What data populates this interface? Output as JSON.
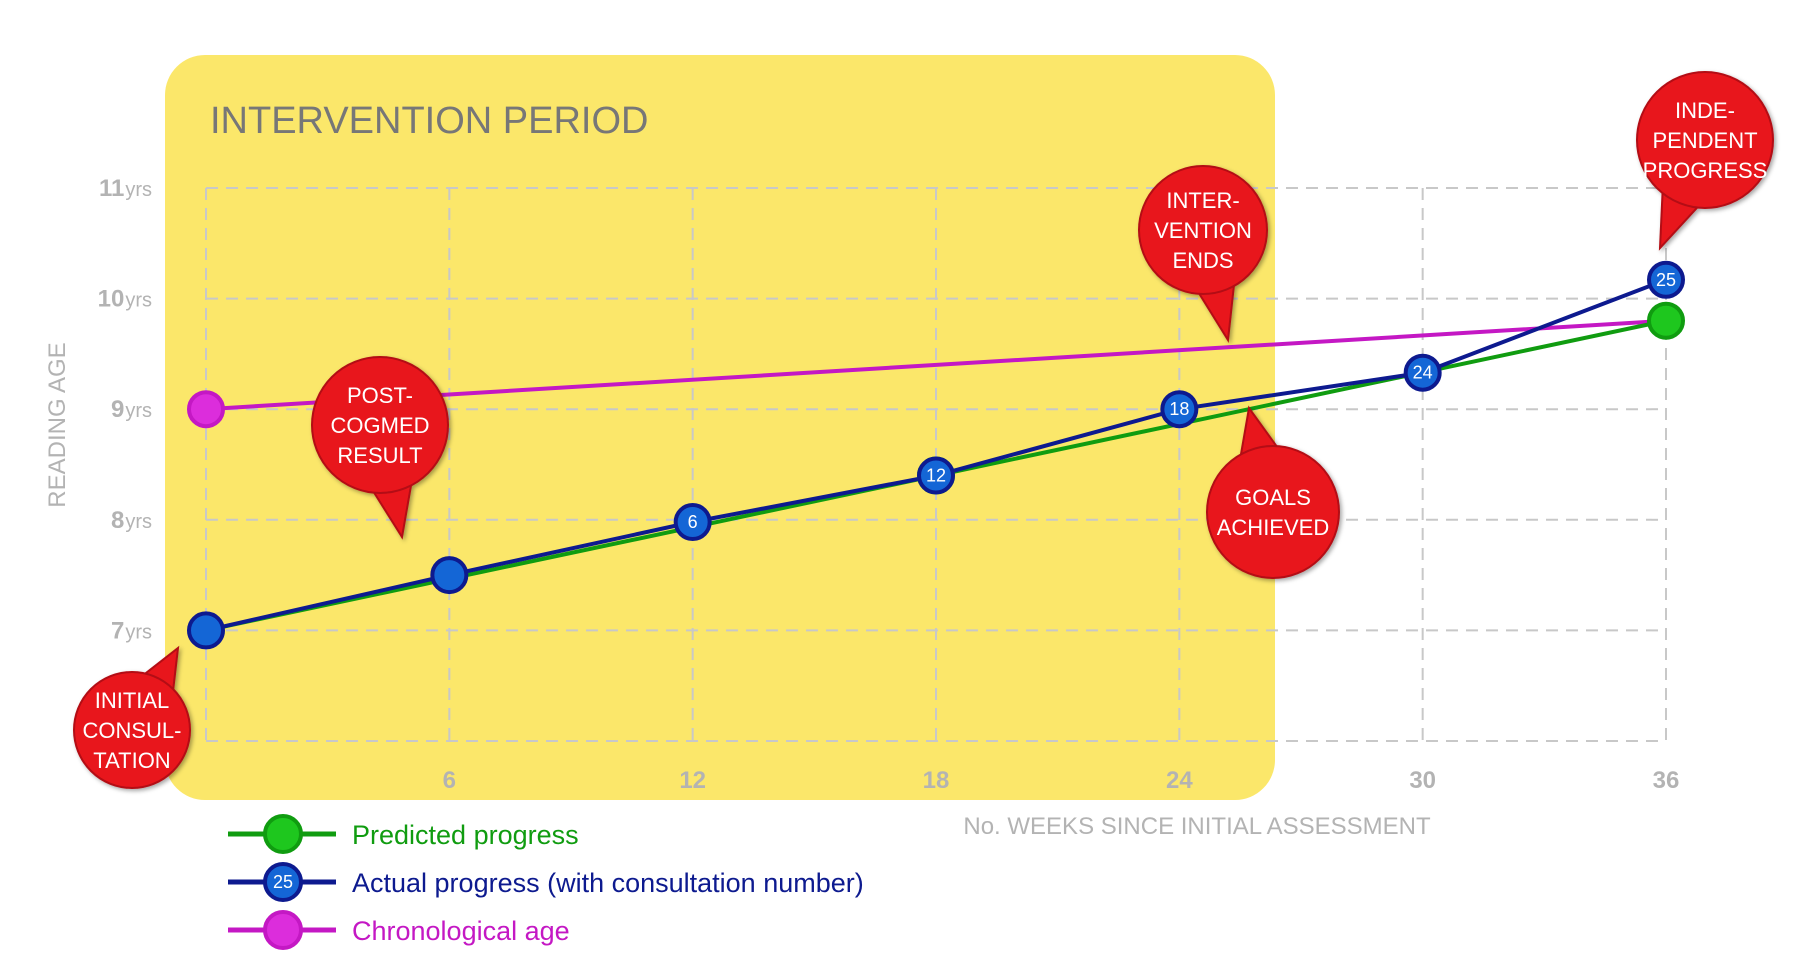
{
  "chart_data": {
    "type": "line",
    "band": {
      "label": "INTERVENTION PERIOD",
      "x_range": [
        0,
        26
      ]
    },
    "x_axis": {
      "label": "No. WEEKS SINCE INITIAL ASSESSMENT",
      "range": [
        0,
        36
      ],
      "ticks": [
        6,
        12,
        18,
        24,
        30,
        36
      ],
      "tick_labels": [
        "6",
        "12",
        "18",
        "24",
        "30",
        "36"
      ]
    },
    "y_axis": {
      "label": "READING AGE",
      "range": [
        6,
        11
      ],
      "ticks": [
        7,
        8,
        9,
        10,
        11
      ],
      "tick_nums": [
        "7",
        "8",
        "9",
        "10",
        "11"
      ],
      "unit": "yrs"
    },
    "grid": true,
    "series": [
      {
        "name": "Predicted progress",
        "color": "#109c10",
        "marker_color": "#1ec71e",
        "points": [
          {
            "x": 0,
            "y": 7.0
          },
          {
            "x": 36,
            "y": 9.8,
            "marker": true
          }
        ],
        "markers_at": [
          18
        ]
      },
      {
        "name": "Actual progress (with consultation number)",
        "color": "#0d1a8f",
        "marker_color": "#1466d6",
        "points": [
          {
            "x": 0,
            "y": 7.0,
            "label": ""
          },
          {
            "x": 6,
            "y": 7.5,
            "label": ""
          },
          {
            "x": 12,
            "y": 7.98,
            "label": "6"
          },
          {
            "x": 18,
            "y": 8.4,
            "label": "12"
          },
          {
            "x": 24,
            "y": 9.0,
            "label": "18"
          },
          {
            "x": 30,
            "y": 9.33,
            "label": "24"
          },
          {
            "x": 36,
            "y": 10.17,
            "label": "25"
          }
        ]
      },
      {
        "name": "Chronological age",
        "color": "#c418c4",
        "marker_color": "#dc2ddc",
        "points": [
          {
            "x": 0,
            "y": 9.0
          },
          {
            "x": 36,
            "y": 9.8
          }
        ]
      }
    ],
    "annotations": [
      {
        "text": [
          "INITIAL",
          "CONSUL-",
          "TATION"
        ],
        "x": 0,
        "y": 7.0
      },
      {
        "text": [
          "POST-",
          "COGMED",
          "RESULT"
        ],
        "x": 6,
        "y": 7.5
      },
      {
        "text": [
          "INTER-",
          "VENTION",
          "ENDS"
        ],
        "x": 26,
        "y": 9.6
      },
      {
        "text": [
          "GOALS",
          "ACHIEVED"
        ],
        "x": 30,
        "y": 9.33
      },
      {
        "text": [
          "INDE-",
          "PENDENT",
          "PROGRESS"
        ],
        "x": 36,
        "y": 10.17
      }
    ],
    "legend": {
      "position": "bottom-left",
      "entries": [
        {
          "label": "Predicted progress",
          "marker_label": ""
        },
        {
          "label": "Actual progress (with consultation number)",
          "marker_label": "25"
        },
        {
          "label": "Chronological age",
          "marker_label": ""
        }
      ]
    }
  }
}
